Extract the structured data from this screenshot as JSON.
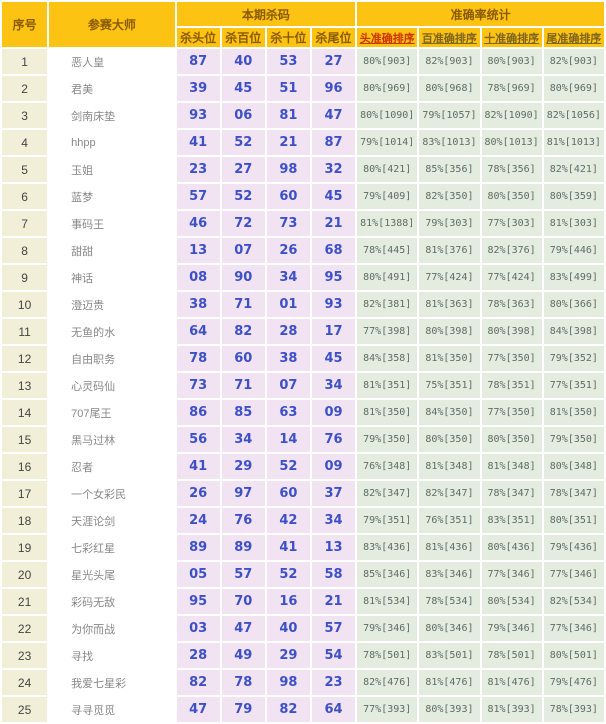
{
  "table": {
    "headers": {
      "col_serial": "序号",
      "col_master": "参赛大师",
      "group_kill": "本期杀码",
      "group_accuracy": "准确率统计",
      "kill_cols": [
        "杀头位",
        "杀百位",
        "杀十位",
        "杀尾位"
      ],
      "accuracy_cols": [
        "头准确排序",
        "百准确排序",
        "十准确排序",
        "尾准确排序"
      ]
    },
    "rows": [
      {
        "no": "1",
        "master": "恶人皇",
        "kills": [
          "87",
          "40",
          "53",
          "27"
        ],
        "accuracy": [
          "80%[903]",
          "82%[903]",
          "80%[903]",
          "82%[903]"
        ]
      },
      {
        "no": "2",
        "master": "君美",
        "kills": [
          "39",
          "45",
          "51",
          "96"
        ],
        "accuracy": [
          "80%[969]",
          "80%[968]",
          "78%[969]",
          "80%[969]"
        ]
      },
      {
        "no": "3",
        "master": "剑南床垫",
        "kills": [
          "93",
          "06",
          "81",
          "47"
        ],
        "accuracy": [
          "80%[1090]",
          "79%[1057]",
          "82%[1090]",
          "82%[1056]"
        ]
      },
      {
        "no": "4",
        "master": "hhpp",
        "kills": [
          "41",
          "52",
          "21",
          "87"
        ],
        "accuracy": [
          "79%[1014]",
          "83%[1013]",
          "80%[1013]",
          "81%[1013]"
        ]
      },
      {
        "no": "5",
        "master": "玉姐",
        "kills": [
          "23",
          "27",
          "98",
          "32"
        ],
        "accuracy": [
          "80%[421]",
          "85%[356]",
          "78%[356]",
          "82%[421]"
        ]
      },
      {
        "no": "6",
        "master": "蓝梦",
        "kills": [
          "57",
          "52",
          "60",
          "45"
        ],
        "accuracy": [
          "79%[409]",
          "82%[350]",
          "80%[350]",
          "80%[359]"
        ]
      },
      {
        "no": "7",
        "master": "事码王",
        "kills": [
          "46",
          "72",
          "73",
          "21"
        ],
        "accuracy": [
          "81%[1388]",
          "79%[303]",
          "77%[303]",
          "81%[303]"
        ]
      },
      {
        "no": "8",
        "master": "甜甜",
        "kills": [
          "13",
          "07",
          "26",
          "68"
        ],
        "accuracy": [
          "78%[445]",
          "81%[376]",
          "82%[376]",
          "79%[446]"
        ]
      },
      {
        "no": "9",
        "master": "神话",
        "kills": [
          "08",
          "90",
          "34",
          "95"
        ],
        "accuracy": [
          "80%[491]",
          "77%[424]",
          "77%[424]",
          "83%[499]"
        ]
      },
      {
        "no": "10",
        "master": "澄迈贵",
        "kills": [
          "38",
          "71",
          "01",
          "93"
        ],
        "accuracy": [
          "82%[381]",
          "81%[363]",
          "78%[363]",
          "80%[366]"
        ]
      },
      {
        "no": "11",
        "master": "无鱼的水",
        "kills": [
          "64",
          "82",
          "28",
          "17"
        ],
        "accuracy": [
          "77%[398]",
          "80%[398]",
          "80%[398]",
          "84%[398]"
        ]
      },
      {
        "no": "12",
        "master": "自由职务",
        "kills": [
          "78",
          "60",
          "38",
          "45"
        ],
        "accuracy": [
          "84%[358]",
          "81%[350]",
          "77%[350]",
          "79%[352]"
        ]
      },
      {
        "no": "13",
        "master": "心灵码仙",
        "kills": [
          "73",
          "71",
          "07",
          "34"
        ],
        "accuracy": [
          "81%[351]",
          "75%[351]",
          "78%[351]",
          "77%[351]"
        ]
      },
      {
        "no": "14",
        "master": "707尾王",
        "kills": [
          "86",
          "85",
          "63",
          "09"
        ],
        "accuracy": [
          "81%[350]",
          "84%[350]",
          "77%[350]",
          "81%[350]"
        ]
      },
      {
        "no": "15",
        "master": "黑马过林",
        "kills": [
          "56",
          "34",
          "14",
          "76"
        ],
        "accuracy": [
          "79%[350]",
          "80%[350]",
          "80%[350]",
          "79%[350]"
        ]
      },
      {
        "no": "16",
        "master": "忍者",
        "kills": [
          "41",
          "29",
          "52",
          "09"
        ],
        "accuracy": [
          "76%[348]",
          "81%[348]",
          "81%[348]",
          "80%[348]"
        ]
      },
      {
        "no": "17",
        "master": "一个女彩民",
        "kills": [
          "26",
          "97",
          "60",
          "37"
        ],
        "accuracy": [
          "82%[347]",
          "82%[347]",
          "78%[347]",
          "78%[347]"
        ]
      },
      {
        "no": "18",
        "master": "天涯论剑",
        "kills": [
          "24",
          "76",
          "42",
          "34"
        ],
        "accuracy": [
          "79%[351]",
          "76%[351]",
          "83%[351]",
          "80%[351]"
        ]
      },
      {
        "no": "19",
        "master": "七彩红星",
        "kills": [
          "89",
          "89",
          "41",
          "13"
        ],
        "accuracy": [
          "83%[436]",
          "81%[436]",
          "80%[436]",
          "79%[436]"
        ]
      },
      {
        "no": "20",
        "master": "星光头尾",
        "kills": [
          "05",
          "57",
          "52",
          "58"
        ],
        "accuracy": [
          "85%[346]",
          "83%[346]",
          "77%[346]",
          "77%[346]"
        ]
      },
      {
        "no": "21",
        "master": "彩码无敌",
        "kills": [
          "95",
          "70",
          "16",
          "21"
        ],
        "accuracy": [
          "81%[534]",
          "78%[534]",
          "80%[534]",
          "82%[534]"
        ]
      },
      {
        "no": "22",
        "master": "为你而战",
        "kills": [
          "03",
          "47",
          "40",
          "57"
        ],
        "accuracy": [
          "79%[346]",
          "80%[346]",
          "79%[346]",
          "77%[346]"
        ]
      },
      {
        "no": "23",
        "master": "寻找",
        "kills": [
          "28",
          "49",
          "29",
          "54"
        ],
        "accuracy": [
          "78%[501]",
          "83%[501]",
          "78%[501]",
          "80%[501]"
        ]
      },
      {
        "no": "24",
        "master": "我爱七星彩",
        "kills": [
          "82",
          "78",
          "98",
          "23"
        ],
        "accuracy": [
          "82%[476]",
          "81%[476]",
          "81%[476]",
          "79%[476]"
        ]
      },
      {
        "no": "25",
        "master": "寻寻觅觅",
        "kills": [
          "47",
          "79",
          "82",
          "64"
        ],
        "accuracy": [
          "77%[393]",
          "80%[393]",
          "81%[393]",
          "78%[393]"
        ]
      }
    ]
  },
  "colors": {
    "header_bg": "#fdc312",
    "header_text": "#8a5a00",
    "sort_link_active": "#cc3300",
    "sort_link": "#7d6420",
    "serial_bg": "#f2efd8",
    "kill_bg": "#f2e3f2",
    "kill_text": "#3c50c8",
    "accuracy_bg": "#e4ecdf",
    "accuracy_text": "#5d6d60"
  }
}
